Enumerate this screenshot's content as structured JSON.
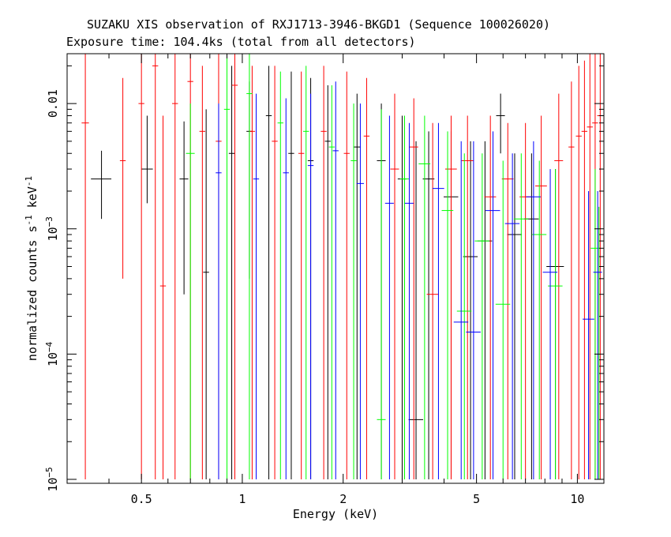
{
  "chart_data": {
    "type": "scatter",
    "title": "SUZAKU XIS observation of RXJ1713-3946-BKGD1 (Sequence 100026020)",
    "subtitle": "Exposure time: 104.4ks (total from all detectors)",
    "xlabel": "Energy (keV)",
    "ylabel": "normalized counts s",
    "ylabel_sup1": "-1",
    "ylabel_mid": " keV",
    "ylabel_sup2": "-1",
    "x_scale": "log",
    "y_scale": "log",
    "xlim": [
      0.3,
      12
    ],
    "ylim": [
      9.3e-06,
      0.025
    ],
    "x_ticks": [
      {
        "value": 0.5,
        "label": "0.5"
      },
      {
        "value": 1,
        "label": "1"
      },
      {
        "value": 2,
        "label": "2"
      },
      {
        "value": 5,
        "label": "5"
      },
      {
        "value": 10,
        "label": "10"
      }
    ],
    "y_ticks": [
      {
        "value": 0.01,
        "base": "0.01",
        "exp": ""
      },
      {
        "value": 0.001,
        "base": "10",
        "exp": "−3"
      },
      {
        "value": 0.0001,
        "base": "10",
        "exp": "−4"
      },
      {
        "value": 1e-05,
        "base": "10",
        "exp": "−5"
      }
    ],
    "series": [
      {
        "color": "#000000",
        "points": [
          [
            0.38,
            0.0025,
            0.07,
            0.0012,
            0.0042
          ],
          [
            0.52,
            0.003,
            0.04,
            0.0016,
            0.008
          ],
          [
            0.67,
            0.0025,
            0.03,
            0.0003,
            0.0072
          ],
          [
            0.78,
            0.00045,
            0.02,
            1e-05,
            0.009
          ],
          [
            0.93,
            0.004,
            0.02,
            1e-05,
            0.02
          ],
          [
            1.05,
            0.006,
            0.02,
            0.0004,
            0.015
          ],
          [
            1.2,
            0.008,
            0.02,
            1e-05,
            0.02
          ],
          [
            1.4,
            0.004,
            0.02,
            1e-05,
            0.018
          ],
          [
            1.6,
            0.0035,
            0.02,
            1e-05,
            0.016
          ],
          [
            1.8,
            0.005,
            0.02,
            1e-05,
            0.014
          ],
          [
            2.2,
            0.0045,
            0.025,
            1e-05,
            0.012
          ],
          [
            2.6,
            0.0035,
            0.03,
            1e-05,
            0.01
          ],
          [
            3.0,
            0.0025,
            0.03,
            1e-05,
            0.008
          ],
          [
            3.3,
            3e-05,
            0.05,
            1e-05,
            0.005
          ],
          [
            3.6,
            0.0025,
            0.04,
            1e-05,
            0.006
          ],
          [
            4.2,
            0.0018,
            0.05,
            1e-05,
            0.006
          ],
          [
            4.8,
            0.0006,
            0.05,
            1e-05,
            0.005
          ],
          [
            5.3,
            0.0008,
            0.05,
            1e-05,
            0.005
          ],
          [
            5.9,
            0.008,
            0.03,
            0.004,
            0.012
          ],
          [
            6.5,
            0.0009,
            0.05,
            1e-05,
            0.004
          ],
          [
            7.3,
            0.0012,
            0.05,
            1e-05,
            0.004
          ],
          [
            8.6,
            0.0005,
            0.06,
            1e-05,
            0.003
          ]
        ]
      },
      {
        "color": "#ff0000",
        "points": [
          [
            0.34,
            0.007,
            0.025,
            1e-05,
            0.025
          ],
          [
            0.44,
            0.0035,
            0.02,
            0.0004,
            0.016
          ],
          [
            0.5,
            0.01,
            0.02,
            1e-05,
            0.025
          ],
          [
            0.55,
            0.02,
            0.02,
            1e-05,
            0.025
          ],
          [
            0.58,
            0.00035,
            0.02,
            1e-05,
            0.008
          ],
          [
            0.63,
            0.01,
            0.02,
            1e-05,
            0.025
          ],
          [
            0.7,
            0.015,
            0.02,
            1e-05,
            0.025
          ],
          [
            0.76,
            0.006,
            0.02,
            1e-05,
            0.02
          ],
          [
            0.85,
            0.005,
            0.02,
            1e-05,
            0.025
          ],
          [
            0.95,
            0.014,
            0.02,
            1e-05,
            0.025
          ],
          [
            1.07,
            0.006,
            0.02,
            1e-05,
            0.02
          ],
          [
            1.25,
            0.005,
            0.02,
            1e-05,
            0.02
          ],
          [
            1.5,
            0.004,
            0.02,
            1e-05,
            0.018
          ],
          [
            1.75,
            0.006,
            0.02,
            1e-05,
            0.02
          ],
          [
            2.05,
            0.004,
            0.02,
            1e-05,
            0.018
          ],
          [
            2.35,
            0.0055,
            0.02,
            1e-05,
            0.016
          ],
          [
            2.85,
            0.003,
            0.03,
            1e-05,
            0.012
          ],
          [
            3.25,
            0.0045,
            0.03,
            1e-05,
            0.011
          ],
          [
            3.7,
            0.0003,
            0.04,
            1e-05,
            0.007
          ],
          [
            4.2,
            0.003,
            0.04,
            1e-05,
            0.008
          ],
          [
            4.7,
            0.0035,
            0.04,
            1e-05,
            0.008
          ],
          [
            5.5,
            0.0018,
            0.04,
            1e-05,
            0.008
          ],
          [
            6.2,
            0.0025,
            0.04,
            1e-05,
            0.007
          ],
          [
            7.0,
            0.0018,
            0.04,
            1e-05,
            0.007
          ],
          [
            7.8,
            0.0022,
            0.04,
            1e-05,
            0.008
          ],
          [
            8.8,
            0.0035,
            0.03,
            1e-05,
            0.012
          ],
          [
            9.6,
            0.0045,
            0.02,
            1e-05,
            0.015
          ],
          [
            10.1,
            0.0055,
            0.02,
            1e-05,
            0.02
          ],
          [
            10.5,
            0.006,
            0.02,
            1e-05,
            0.022
          ],
          [
            10.9,
            0.0065,
            0.02,
            1e-05,
            0.025
          ],
          [
            11.3,
            0.007,
            0.02,
            1e-05,
            0.025
          ],
          [
            11.7,
            0.008,
            0.02,
            1e-05,
            0.025
          ]
        ]
      },
      {
        "color": "#00ff00",
        "points": [
          [
            0.7,
            0.004,
            0.03,
            1e-05,
            0.01
          ],
          [
            0.9,
            0.009,
            0.02,
            1e-05,
            0.025
          ],
          [
            1.05,
            0.012,
            0.02,
            1e-05,
            0.025
          ],
          [
            1.3,
            0.007,
            0.02,
            1e-05,
            0.018
          ],
          [
            1.55,
            0.006,
            0.02,
            1e-05,
            0.02
          ],
          [
            1.85,
            0.0045,
            0.02,
            1e-05,
            0.014
          ],
          [
            2.15,
            0.0035,
            0.02,
            1e-05,
            0.01
          ],
          [
            2.6,
            3e-05,
            0.03,
            1e-05,
            0.009
          ],
          [
            3.05,
            0.0025,
            0.03,
            1e-05,
            0.008
          ],
          [
            3.5,
            0.0033,
            0.04,
            1e-05,
            0.008
          ],
          [
            4.1,
            0.0014,
            0.04,
            1e-05,
            0.006
          ],
          [
            4.6,
            0.00022,
            0.05,
            1e-05,
            0.004
          ],
          [
            5.2,
            0.0008,
            0.05,
            1e-05,
            0.004
          ],
          [
            6.0,
            0.00025,
            0.05,
            1e-05,
            0.0035
          ],
          [
            6.8,
            0.0012,
            0.05,
            1e-05,
            0.004
          ],
          [
            7.7,
            0.0009,
            0.05,
            1e-05,
            0.0035
          ],
          [
            8.6,
            0.00035,
            0.05,
            1e-05,
            0.003
          ],
          [
            11.3,
            0.0007,
            0.03,
            1e-05,
            0.003
          ],
          [
            11.6,
            1e-05,
            0.02,
            1e-05,
            0.0015
          ]
        ]
      },
      {
        "color": "#0000ff",
        "points": [
          [
            0.85,
            0.0028,
            0.02,
            1e-05,
            0.01
          ],
          [
            1.1,
            0.0025,
            0.02,
            1e-05,
            0.012
          ],
          [
            1.35,
            0.0028,
            0.02,
            1e-05,
            0.011
          ],
          [
            1.6,
            0.0032,
            0.02,
            1e-05,
            0.012
          ],
          [
            1.9,
            0.0042,
            0.02,
            1e-05,
            0.015
          ],
          [
            2.25,
            0.0023,
            0.025,
            1e-05,
            0.01
          ],
          [
            2.75,
            0.0016,
            0.03,
            1e-05,
            0.008
          ],
          [
            3.15,
            0.0016,
            0.03,
            1e-05,
            0.007
          ],
          [
            3.85,
            0.0021,
            0.04,
            1e-05,
            0.007
          ],
          [
            4.5,
            0.00018,
            0.05,
            1e-05,
            0.005
          ],
          [
            4.9,
            0.00015,
            0.05,
            1e-05,
            0.005
          ],
          [
            5.6,
            0.0014,
            0.05,
            1e-05,
            0.006
          ],
          [
            6.4,
            0.0011,
            0.05,
            1e-05,
            0.004
          ],
          [
            7.4,
            0.0018,
            0.05,
            1e-05,
            0.005
          ],
          [
            8.3,
            0.00045,
            0.05,
            1e-05,
            0.003
          ],
          [
            10.8,
            0.00019,
            0.04,
            1e-05,
            0.002
          ],
          [
            11.5,
            0.00045,
            0.03,
            1e-05,
            0.002
          ]
        ]
      }
    ]
  }
}
